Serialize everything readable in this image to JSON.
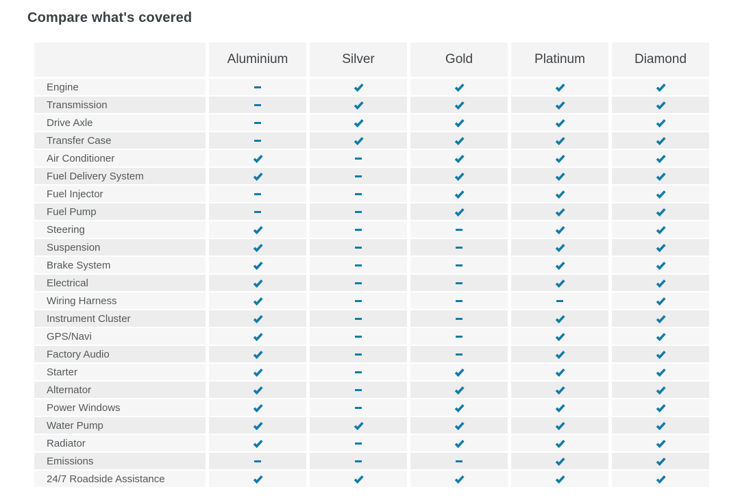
{
  "page_title": "Compare what's covered",
  "accent_color": "#117ca6",
  "symbols": {
    "covered": "check",
    "not_covered": "dash"
  },
  "table": {
    "columns": [
      "Aluminium",
      "Silver",
      "Gold",
      "Platinum",
      "Diamond"
    ],
    "rows": [
      {
        "label": "Engine",
        "covered": [
          false,
          true,
          true,
          true,
          true
        ]
      },
      {
        "label": "Transmission",
        "covered": [
          false,
          true,
          true,
          true,
          true
        ]
      },
      {
        "label": "Drive Axle",
        "covered": [
          false,
          true,
          true,
          true,
          true
        ]
      },
      {
        "label": "Transfer Case",
        "covered": [
          false,
          true,
          true,
          true,
          true
        ]
      },
      {
        "label": "Air Conditioner",
        "covered": [
          true,
          false,
          true,
          true,
          true
        ]
      },
      {
        "label": "Fuel Delivery System",
        "covered": [
          true,
          false,
          true,
          true,
          true
        ]
      },
      {
        "label": "Fuel Injector",
        "covered": [
          false,
          false,
          true,
          true,
          true
        ]
      },
      {
        "label": "Fuel Pump",
        "covered": [
          false,
          false,
          true,
          true,
          true
        ]
      },
      {
        "label": "Steering",
        "covered": [
          true,
          false,
          false,
          true,
          true
        ]
      },
      {
        "label": "Suspension",
        "covered": [
          true,
          false,
          false,
          true,
          true
        ]
      },
      {
        "label": "Brake System",
        "covered": [
          true,
          false,
          false,
          true,
          true
        ]
      },
      {
        "label": "Electrical",
        "covered": [
          true,
          false,
          false,
          true,
          true
        ]
      },
      {
        "label": "Wiring Harness",
        "covered": [
          true,
          false,
          false,
          false,
          true
        ]
      },
      {
        "label": "Instrument Cluster",
        "covered": [
          true,
          false,
          false,
          true,
          true
        ]
      },
      {
        "label": "GPS/Navi",
        "covered": [
          true,
          false,
          false,
          true,
          true
        ]
      },
      {
        "label": "Factory Audio",
        "covered": [
          true,
          false,
          false,
          true,
          true
        ]
      },
      {
        "label": "Starter",
        "covered": [
          true,
          false,
          true,
          true,
          true
        ]
      },
      {
        "label": "Alternator",
        "covered": [
          true,
          false,
          true,
          true,
          true
        ]
      },
      {
        "label": "Power Windows",
        "covered": [
          true,
          false,
          true,
          true,
          true
        ]
      },
      {
        "label": "Water Pump",
        "covered": [
          true,
          true,
          true,
          true,
          true
        ]
      },
      {
        "label": "Radiator",
        "covered": [
          true,
          false,
          true,
          true,
          true
        ]
      },
      {
        "label": "Emissions",
        "covered": [
          false,
          false,
          false,
          true,
          true
        ]
      },
      {
        "label": "24/7 Roadside Assistance",
        "covered": [
          true,
          true,
          true,
          true,
          true
        ]
      }
    ]
  }
}
